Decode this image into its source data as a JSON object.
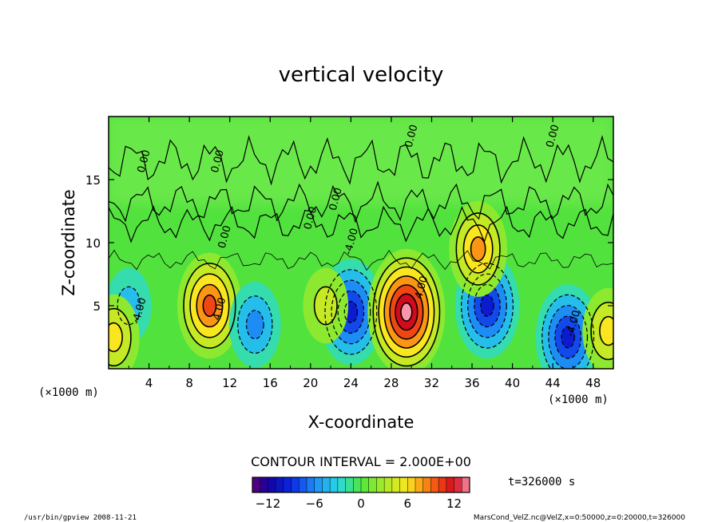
{
  "chart_data": {
    "type": "heatmap",
    "title": "vertical velocity",
    "xlabel": "X-coordinate",
    "ylabel": "Z-coordinate",
    "x_unit_left": "(×1000 m)",
    "x_unit_right": "(×1000 m)",
    "xlim": [
      0,
      50
    ],
    "ylim": [
      0,
      20
    ],
    "xticks": [
      4,
      8,
      12,
      16,
      20,
      24,
      28,
      32,
      36,
      40,
      44,
      48
    ],
    "yticks": [
      5,
      10,
      15
    ],
    "contour_interval_text": "CONTOUR INTERVAL = 2.000E+00",
    "time_text": "t=326000  s",
    "colorbar": {
      "range": [
        -14,
        14
      ],
      "ticks": [
        -12,
        -6,
        0,
        6,
        12
      ],
      "tick_labels": [
        "−12",
        "−6",
        "0",
        "6",
        "12"
      ]
    },
    "contour_labels": [
      "0.00",
      "0.00",
      "0.00",
      "0.00",
      "0.00",
      "0.00",
      "0.00",
      "-4.00",
      "4.00",
      "4.00",
      "-4.00",
      "-4.00"
    ],
    "cells": [
      {
        "x": 10,
        "z": 5,
        "value": 10
      },
      {
        "x": 14.5,
        "z": 3.5,
        "value": -6
      },
      {
        "x": 2,
        "z": 5,
        "value": -4
      },
      {
        "x": 24,
        "z": 4.5,
        "value": -10
      },
      {
        "x": 29.5,
        "z": 4.5,
        "value": 14
      },
      {
        "x": 37.5,
        "z": 5,
        "value": -10
      },
      {
        "x": 36.6,
        "z": 9.5,
        "value": 8
      },
      {
        "x": 45.5,
        "z": 2.5,
        "value": -10
      },
      {
        "x": 49.5,
        "z": 3.0,
        "value": 6
      },
      {
        "x": 0.5,
        "z": 2.5,
        "value": 6
      },
      {
        "x": 21.5,
        "z": 5,
        "value": 4
      }
    ]
  },
  "footer": {
    "left": "/usr/bin/gpview   2008-11-21",
    "right": "MarsCond_VelZ.nc@VelZ,x=0:50000,z=0:20000,t=326000"
  },
  "colors": {
    "background_field": "#4fe63c",
    "positive_peak": "#ffffff",
    "negative_peak": "#0a0a9a"
  }
}
